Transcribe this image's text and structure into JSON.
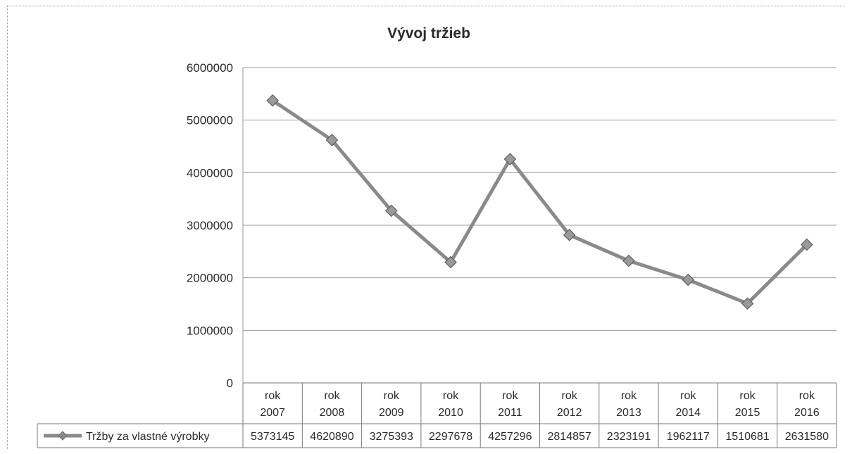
{
  "chart_data": {
    "type": "line",
    "title": "Vývoj tržieb",
    "categories": [
      [
        "rok",
        "2007"
      ],
      [
        "rok",
        "2008"
      ],
      [
        "rok",
        "2009"
      ],
      [
        "rok",
        "2010"
      ],
      [
        "rok",
        "2011"
      ],
      [
        "rok",
        "2012"
      ],
      [
        "rok",
        "2013"
      ],
      [
        "rok",
        "2014"
      ],
      [
        "rok",
        "2015"
      ],
      [
        "rok",
        "2016"
      ]
    ],
    "series": [
      {
        "name": "Tržby za vlastné výrobky",
        "values": [
          5373145,
          4620890,
          3275393,
          2297678,
          4257296,
          2814857,
          2323191,
          1962117,
          1510681,
          2631580
        ]
      }
    ],
    "ylim": [
      0,
      6000000
    ],
    "yticks": [
      0,
      1000000,
      2000000,
      3000000,
      4000000,
      5000000,
      6000000
    ],
    "ytick_labels": [
      "0",
      "1000000",
      "2000000",
      "3000000",
      "4000000",
      "5000000",
      "6000000"
    ],
    "grid": true,
    "data_table": true,
    "line_color": "#8a8a8a",
    "marker": "diamond"
  }
}
